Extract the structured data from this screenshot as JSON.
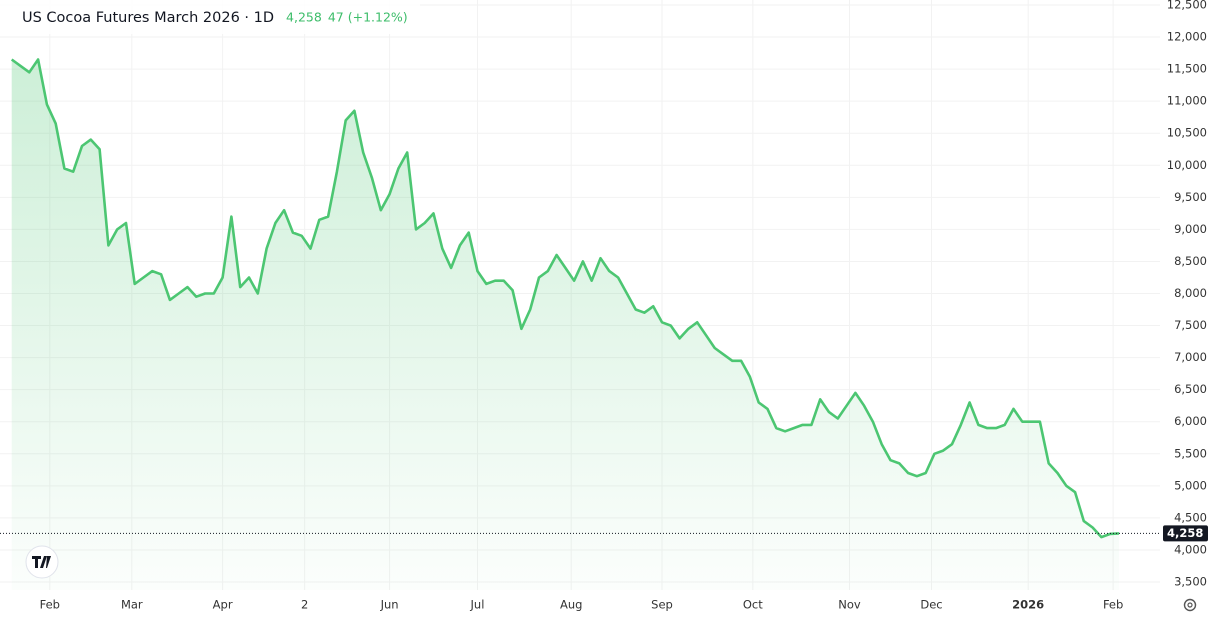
{
  "chart_data": {
    "type": "area",
    "title": "US Cocoa Futures March 2026 · 1D",
    "last_price": {
      "value": 4258,
      "label": "4,258"
    },
    "change": 47,
    "change_percent": {
      "value": 1.12,
      "label": "(+1.12%)"
    },
    "color": "#4cc672",
    "grid": true,
    "xlim": [
      14,
      410
    ],
    "ylim": [
      3500,
      12500
    ],
    "xticks": [
      {
        "value": 31,
        "label": "Feb"
      },
      {
        "value": 59,
        "label": "Mar"
      },
      {
        "value": 90,
        "label": "Apr"
      },
      {
        "value": 118,
        "label": "2"
      },
      {
        "value": 147,
        "label": "Jun"
      },
      {
        "value": 177,
        "label": "Jul"
      },
      {
        "value": 209,
        "label": "Aug"
      },
      {
        "value": 240,
        "label": "Sep"
      },
      {
        "value": 271,
        "label": "Oct"
      },
      {
        "value": 304,
        "label": "Nov"
      },
      {
        "value": 332,
        "label": "Dec"
      },
      {
        "value": 365,
        "label": "2026"
      },
      {
        "value": 394,
        "label": "Feb"
      }
    ],
    "yticks": [
      {
        "value": 3500,
        "label": "3,500"
      },
      {
        "value": 4000,
        "label": "4,000"
      },
      {
        "value": 4500,
        "label": "4,500"
      },
      {
        "value": 5000,
        "label": "5,000"
      },
      {
        "value": 5500,
        "label": "5,500"
      },
      {
        "value": 6000,
        "label": "6,000"
      },
      {
        "value": 6500,
        "label": "6,500"
      },
      {
        "value": 7000,
        "label": "7,000"
      },
      {
        "value": 7500,
        "label": "7,500"
      },
      {
        "value": 8000,
        "label": "8,000"
      },
      {
        "value": 8500,
        "label": "8,500"
      },
      {
        "value": 9000,
        "label": "9,000"
      },
      {
        "value": 9500,
        "label": "9,500"
      },
      {
        "value": 10000,
        "label": "10,000"
      },
      {
        "value": 10500,
        "label": "10,500"
      },
      {
        "value": 11000,
        "label": "11,000"
      },
      {
        "value": 11500,
        "label": "11,500"
      },
      {
        "value": 12000,
        "label": "12,000"
      },
      {
        "value": 12500,
        "label": "12,500"
      }
    ],
    "x": [
      18,
      21,
      24,
      27,
      30,
      33,
      36,
      39,
      42,
      45,
      48,
      51,
      54,
      57,
      60,
      63,
      66,
      69,
      72,
      75,
      78,
      81,
      84,
      87,
      90,
      93,
      96,
      99,
      102,
      105,
      108,
      111,
      114,
      117,
      120,
      123,
      126,
      129,
      132,
      135,
      138,
      141,
      144,
      147,
      150,
      153,
      156,
      159,
      162,
      165,
      168,
      171,
      174,
      177,
      180,
      183,
      186,
      189,
      192,
      195,
      198,
      201,
      204,
      207,
      210,
      213,
      216,
      219,
      222,
      225,
      228,
      231,
      234,
      237,
      240,
      243,
      246,
      249,
      252,
      255,
      258,
      261,
      264,
      267,
      270,
      273,
      276,
      279,
      282,
      285,
      288,
      291,
      294,
      297,
      300,
      303,
      306,
      309,
      312,
      315,
      318,
      321,
      324,
      327,
      330,
      333,
      336,
      339,
      342,
      345,
      348,
      351,
      354,
      357,
      360,
      363,
      366,
      369,
      372,
      375,
      378,
      381,
      384,
      387,
      390,
      393,
      396
    ],
    "values": [
      11650,
      11550,
      11450,
      11650,
      10950,
      10650,
      9950,
      9900,
      10300,
      10400,
      10250,
      8750,
      9000,
      9100,
      8150,
      8250,
      8350,
      8300,
      7900,
      8000,
      8100,
      7950,
      8000,
      8000,
      8250,
      9200,
      8100,
      8250,
      8000,
      8700,
      9100,
      9300,
      8950,
      8900,
      8700,
      9150,
      9200,
      9900,
      10700,
      10850,
      10200,
      9800,
      9300,
      9550,
      9950,
      10200,
      9000,
      9100,
      9250,
      8700,
      8400,
      8750,
      8950,
      8350,
      8150,
      8200,
      8200,
      8050,
      7450,
      7750,
      8250,
      8350,
      8600,
      8400,
      8200,
      8500,
      8200,
      8550,
      8350,
      8250,
      8000,
      7750,
      7700,
      7800,
      7550,
      7500,
      7300,
      7450,
      7550,
      7350,
      7150,
      7050,
      6950,
      6950,
      6700,
      6300,
      6200,
      5900,
      5850,
      5900,
      5950,
      5950,
      6350,
      6150,
      6050,
      6250,
      6450,
      6250,
      6000,
      5650,
      5400,
      5350,
      5200,
      5150,
      5200,
      5500,
      5550,
      5650,
      5950,
      6300,
      5950,
      5900,
      5900,
      5950,
      6200,
      6000,
      6000,
      6000,
      5350,
      5200,
      5000,
      4900,
      4450,
      4350,
      4200,
      4250,
      4258
    ]
  }
}
